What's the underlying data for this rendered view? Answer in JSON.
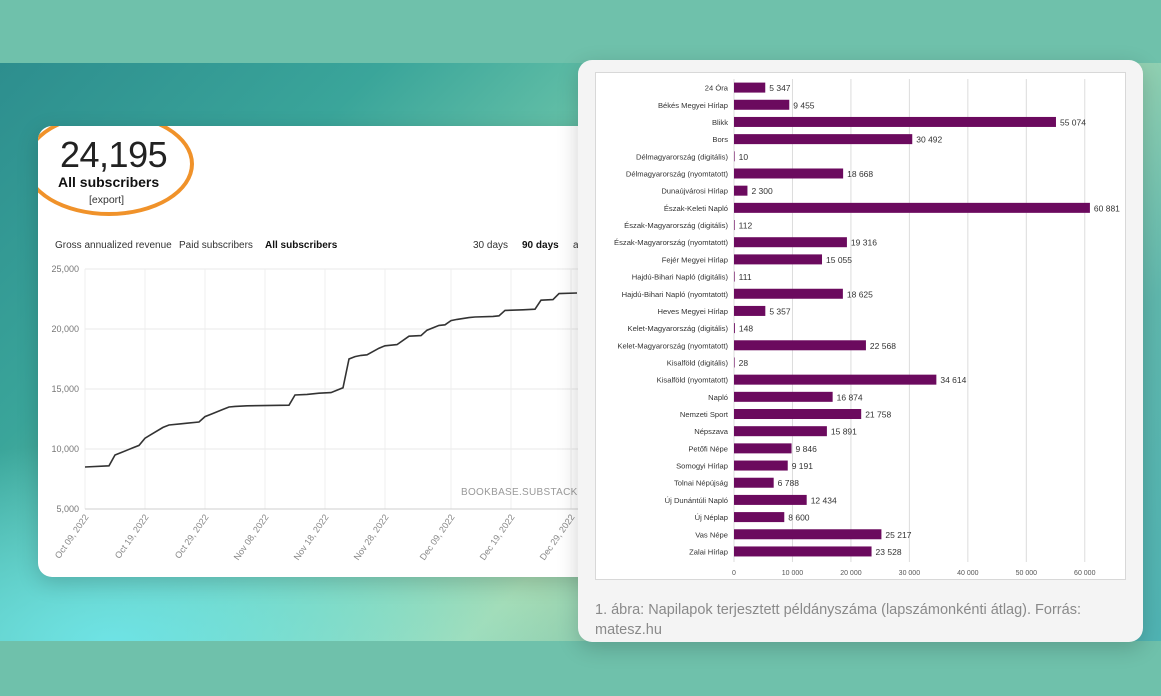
{
  "subscribers": {
    "count": "24,195",
    "label": "All subscribers",
    "export_link": "[export]"
  },
  "tabs": {
    "gross": "Gross annualized revenue",
    "paid": "Paid subscribers",
    "all": "All subscribers",
    "days30": "30 days",
    "days90": "90 days",
    "more": "a"
  },
  "colors": {
    "highlight": "#f0922a",
    "line": "#333333",
    "bars": "#6b0a5e"
  },
  "caption": "1. ábra: Napilapok terjesztett példányszáma (lapszámonkénti átlag). Forrás: matesz.hu",
  "chart_data": [
    {
      "type": "line",
      "watermark": "BOOKBASE.SUBSTACK.COM",
      "ylim": [
        5000,
        25000
      ],
      "y_ticks": [
        5000,
        10000,
        15000,
        20000,
        25000
      ],
      "y_tick_labels": [
        "5,000",
        "10,000",
        "15,000",
        "20,000",
        "25,000"
      ],
      "x_ticks": [
        "2022-10-09",
        "2022-10-19",
        "2022-10-29",
        "2022-11-08",
        "2022-11-18",
        "2022-11-28",
        "2022-12-09",
        "2022-12-19",
        "2022-12-29"
      ],
      "x_tick_labels": [
        "Oct 09, 2022",
        "Oct 19, 2022",
        "Oct 29, 2022",
        "Nov 08, 2022",
        "Nov 18, 2022",
        "Nov 28, 2022",
        "Dec 09, 2022",
        "Dec 19, 2022",
        "Dec 29, 2022"
      ],
      "x": [
        "2022-10-09",
        "2022-10-13",
        "2022-10-14",
        "2022-10-15",
        "2022-10-17",
        "2022-10-18",
        "2022-10-19",
        "2022-10-20",
        "2022-10-22",
        "2022-10-23",
        "2022-10-25",
        "2022-10-26",
        "2022-10-28",
        "2022-10-29",
        "2022-10-30",
        "2022-11-01",
        "2022-11-02",
        "2022-11-03",
        "2022-11-05",
        "2022-11-12",
        "2022-11-13",
        "2022-11-15",
        "2022-11-17",
        "2022-11-19",
        "2022-11-21",
        "2022-11-22",
        "2022-11-23",
        "2022-11-24",
        "2022-11-25",
        "2022-11-27",
        "2022-11-28",
        "2022-11-29",
        "2022-11-30",
        "2022-12-02",
        "2022-12-04",
        "2022-12-05",
        "2022-12-07",
        "2022-12-08",
        "2022-12-09",
        "2022-12-10",
        "2022-12-12",
        "2022-12-13",
        "2022-12-16",
        "2022-12-17",
        "2022-12-18",
        "2022-12-21",
        "2022-12-23",
        "2022-12-24",
        "2022-12-26",
        "2022-12-27",
        "2022-12-30"
      ],
      "y": [
        8500,
        8600,
        9500,
        9700,
        10100,
        10300,
        10900,
        11200,
        11800,
        12000,
        12100,
        12150,
        12250,
        12700,
        12900,
        13300,
        13500,
        13550,
        13600,
        13650,
        14500,
        14550,
        14650,
        14700,
        15100,
        17500,
        17700,
        17800,
        17850,
        18400,
        18600,
        18650,
        18700,
        19400,
        19450,
        19900,
        20300,
        20350,
        20700,
        20800,
        20950,
        21000,
        21050,
        21100,
        21550,
        21600,
        21650,
        22400,
        22450,
        22950,
        23000
      ]
    },
    {
      "type": "bar",
      "orientation": "horizontal",
      "categories": [
        "24 Óra",
        "Békés Megyei Hírlap",
        "Blikk",
        "Bors",
        "Délmagyarország (digitális)",
        "Délmagyarország (nyomtatott)",
        "Dunaújvárosi Hírlap",
        "Észak-Keleti Napló",
        "Észak-Magyarország (digitális)",
        "Észak-Magyarország (nyomtatott)",
        "Fejér Megyei Hírlap",
        "Hajdú-Bihari Napló (digitális)",
        "Hajdú-Bihari Napló (nyomtatott)",
        "Heves Megyei Hírlap",
        "Kelet-Magyarország (digitális)",
        "Kelet-Magyarország (nyomtatott)",
        "Kisalföld (digitális)",
        "Kisalföld (nyomtatott)",
        "Napló",
        "Nemzeti Sport",
        "Népszava",
        "Petőfi Népe",
        "Somogyi Hírlap",
        "Tolnai Népújság",
        "Új Dunántúli Napló",
        "Új Néplap",
        "Vas Népe",
        "Zalai Hírlap"
      ],
      "values": [
        5347,
        9455,
        55074,
        30492,
        10,
        18668,
        2300,
        60881,
        112,
        19316,
        15055,
        111,
        18625,
        5357,
        148,
        22568,
        28,
        34614,
        16874,
        21758,
        15891,
        9846,
        9191,
        6788,
        12434,
        8600,
        25217,
        23528
      ],
      "value_labels": [
        "5 347",
        "9 455",
        "55 074",
        "30 492",
        "10",
        "18 668",
        "2 300",
        "60 881",
        "112",
        "19 316",
        "15 055",
        "111",
        "18 625",
        "5 357",
        "148",
        "22 568",
        "28",
        "34 614",
        "16 874",
        "21 758",
        "15 891",
        "9 846",
        "9 191",
        "6 788",
        "12 434",
        "8 600",
        "25 217",
        "23 528"
      ],
      "xlim": [
        0,
        65000
      ],
      "x_ticks": [
        0,
        10000,
        20000,
        30000,
        40000,
        50000,
        60000
      ],
      "x_tick_labels": [
        "0",
        "10 000",
        "20 000",
        "30 000",
        "40 000",
        "50 000",
        "60 000"
      ]
    }
  ]
}
